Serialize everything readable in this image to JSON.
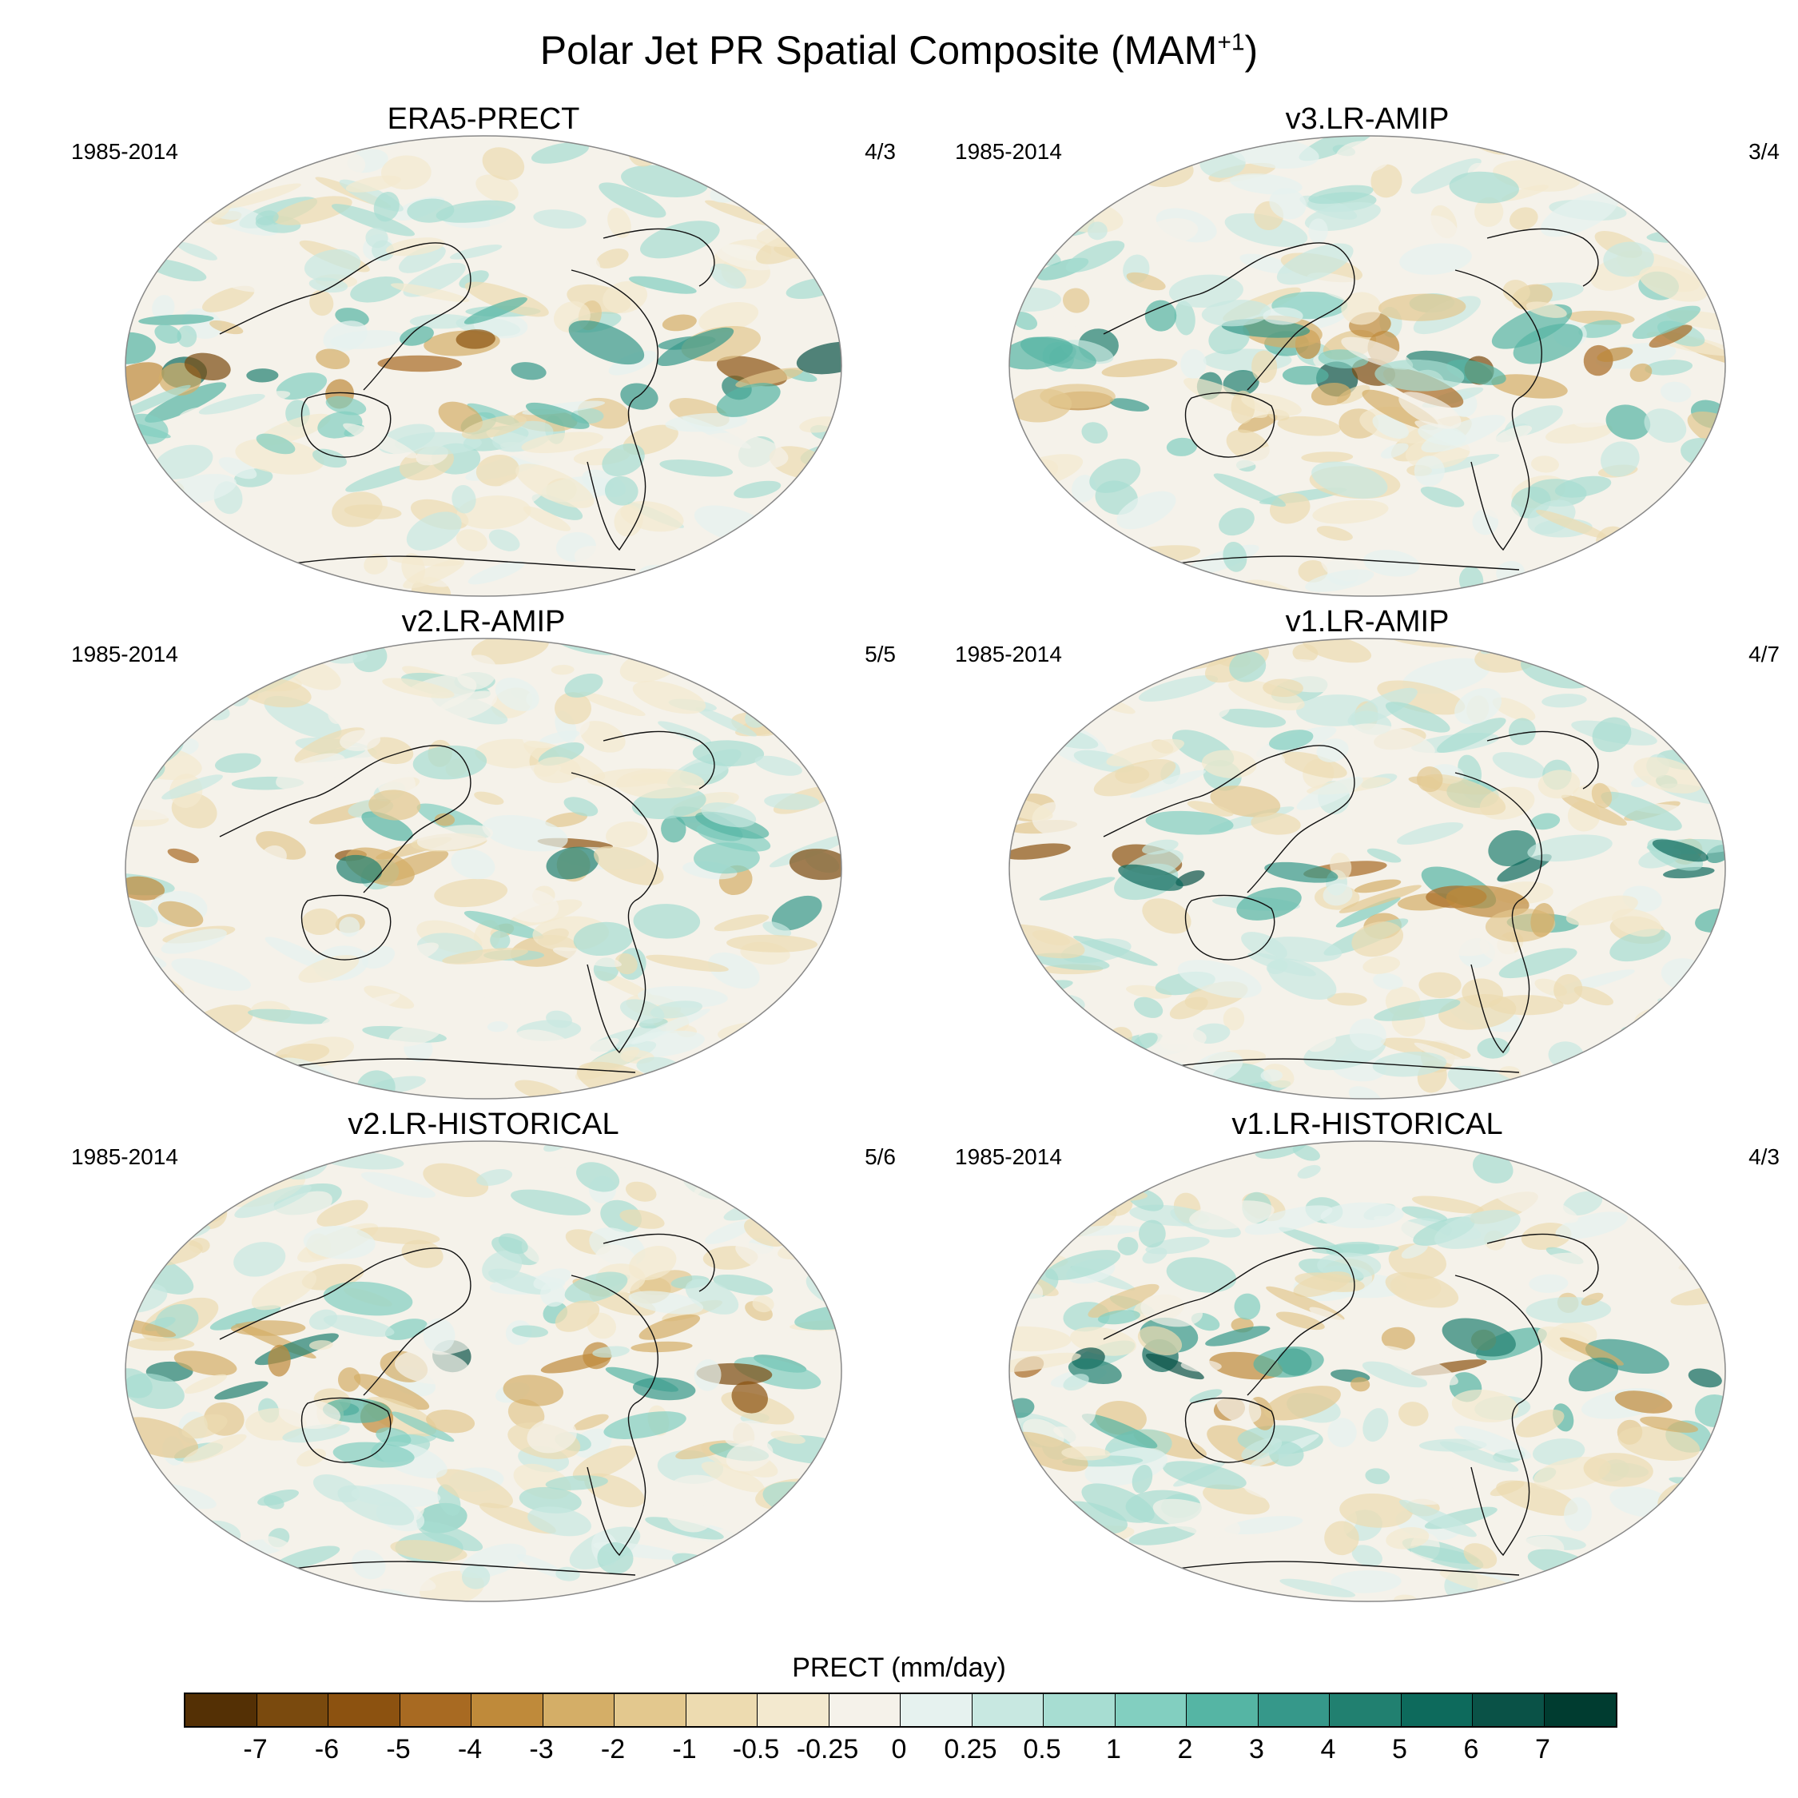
{
  "title": {
    "text": "Polar Jet PR Spatial Composite (MAM",
    "superscript": "+1",
    "suffix": ")"
  },
  "panels": [
    {
      "title": "ERA5-PRECT",
      "period": "1985-2014",
      "count": "4/3"
    },
    {
      "title": "v3.LR-AMIP",
      "period": "1985-2014",
      "count": "3/4"
    },
    {
      "title": "v2.LR-AMIP",
      "period": "1985-2014",
      "count": "5/5"
    },
    {
      "title": "v1.LR-AMIP",
      "period": "1985-2014",
      "count": "4/7"
    },
    {
      "title": "v2.LR-HISTORICAL",
      "period": "1985-2014",
      "count": "5/6"
    },
    {
      "title": "v1.LR-HISTORICAL",
      "period": "1985-2014",
      "count": "4/3"
    }
  ],
  "colorbar": {
    "title": "PRECT (mm/day)",
    "labels": [
      "-7",
      "-6",
      "-5",
      "-4",
      "-3",
      "-2",
      "-1",
      "-0.5",
      "-0.25",
      "0",
      "0.25",
      "0.5",
      "1",
      "2",
      "3",
      "4",
      "5",
      "6",
      "7"
    ],
    "colors": [
      "#543005",
      "#7a4a0e",
      "#8c5210",
      "#a86a22",
      "#bf8a3a",
      "#d4ae67",
      "#e3c88e",
      "#eddbb0",
      "#f3e9cf",
      "#f5f2ea",
      "#e6f2ef",
      "#c8e8e1",
      "#a7ddd2",
      "#82cfc0",
      "#55b5a4",
      "#36988a",
      "#218070",
      "#0d6a5c",
      "#0a5247",
      "#003c30"
    ]
  }
}
